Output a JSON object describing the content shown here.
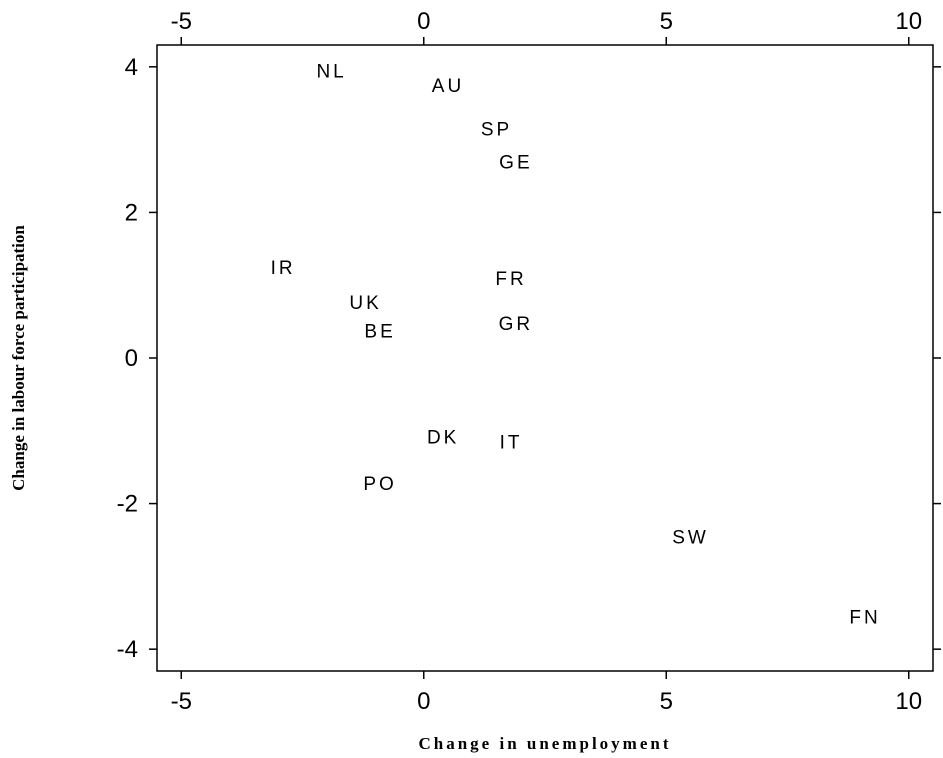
{
  "chart_data": {
    "type": "scatter",
    "xlabel": "Change in unemployment",
    "ylabel": "Change in labour force participation",
    "xlim": [
      -5.5,
      10.5
    ],
    "ylim": [
      -4.3,
      4.3
    ],
    "x_ticks": [
      "-5",
      "0",
      "5",
      "10"
    ],
    "y_ticks": [
      "4",
      "2",
      "0",
      "-2",
      "-4"
    ],
    "x_tick_values": [
      -5,
      0,
      5,
      10
    ],
    "y_tick_values": [
      4,
      2,
      0,
      -2,
      -4
    ],
    "grid": false,
    "points": [
      {
        "label": "NL",
        "x": -1.9,
        "y": 3.95
      },
      {
        "label": "AU",
        "x": 0.5,
        "y": 3.75
      },
      {
        "label": "SP",
        "x": 1.5,
        "y": 3.15
      },
      {
        "label": "GE",
        "x": 1.9,
        "y": 2.7
      },
      {
        "label": "IR",
        "x": -2.9,
        "y": 1.25
      },
      {
        "label": "FR",
        "x": 1.8,
        "y": 1.1
      },
      {
        "label": "UK",
        "x": -1.2,
        "y": 0.77
      },
      {
        "label": "BE",
        "x": -0.9,
        "y": 0.38
      },
      {
        "label": "GR",
        "x": 1.9,
        "y": 0.48
      },
      {
        "label": "DK",
        "x": 0.4,
        "y": -1.08
      },
      {
        "label": "IT",
        "x": 1.8,
        "y": -1.15
      },
      {
        "label": "PO",
        "x": -0.9,
        "y": -1.72
      },
      {
        "label": "SW",
        "x": 5.5,
        "y": -2.45
      },
      {
        "label": "FN",
        "x": 9.1,
        "y": -3.55
      }
    ]
  }
}
